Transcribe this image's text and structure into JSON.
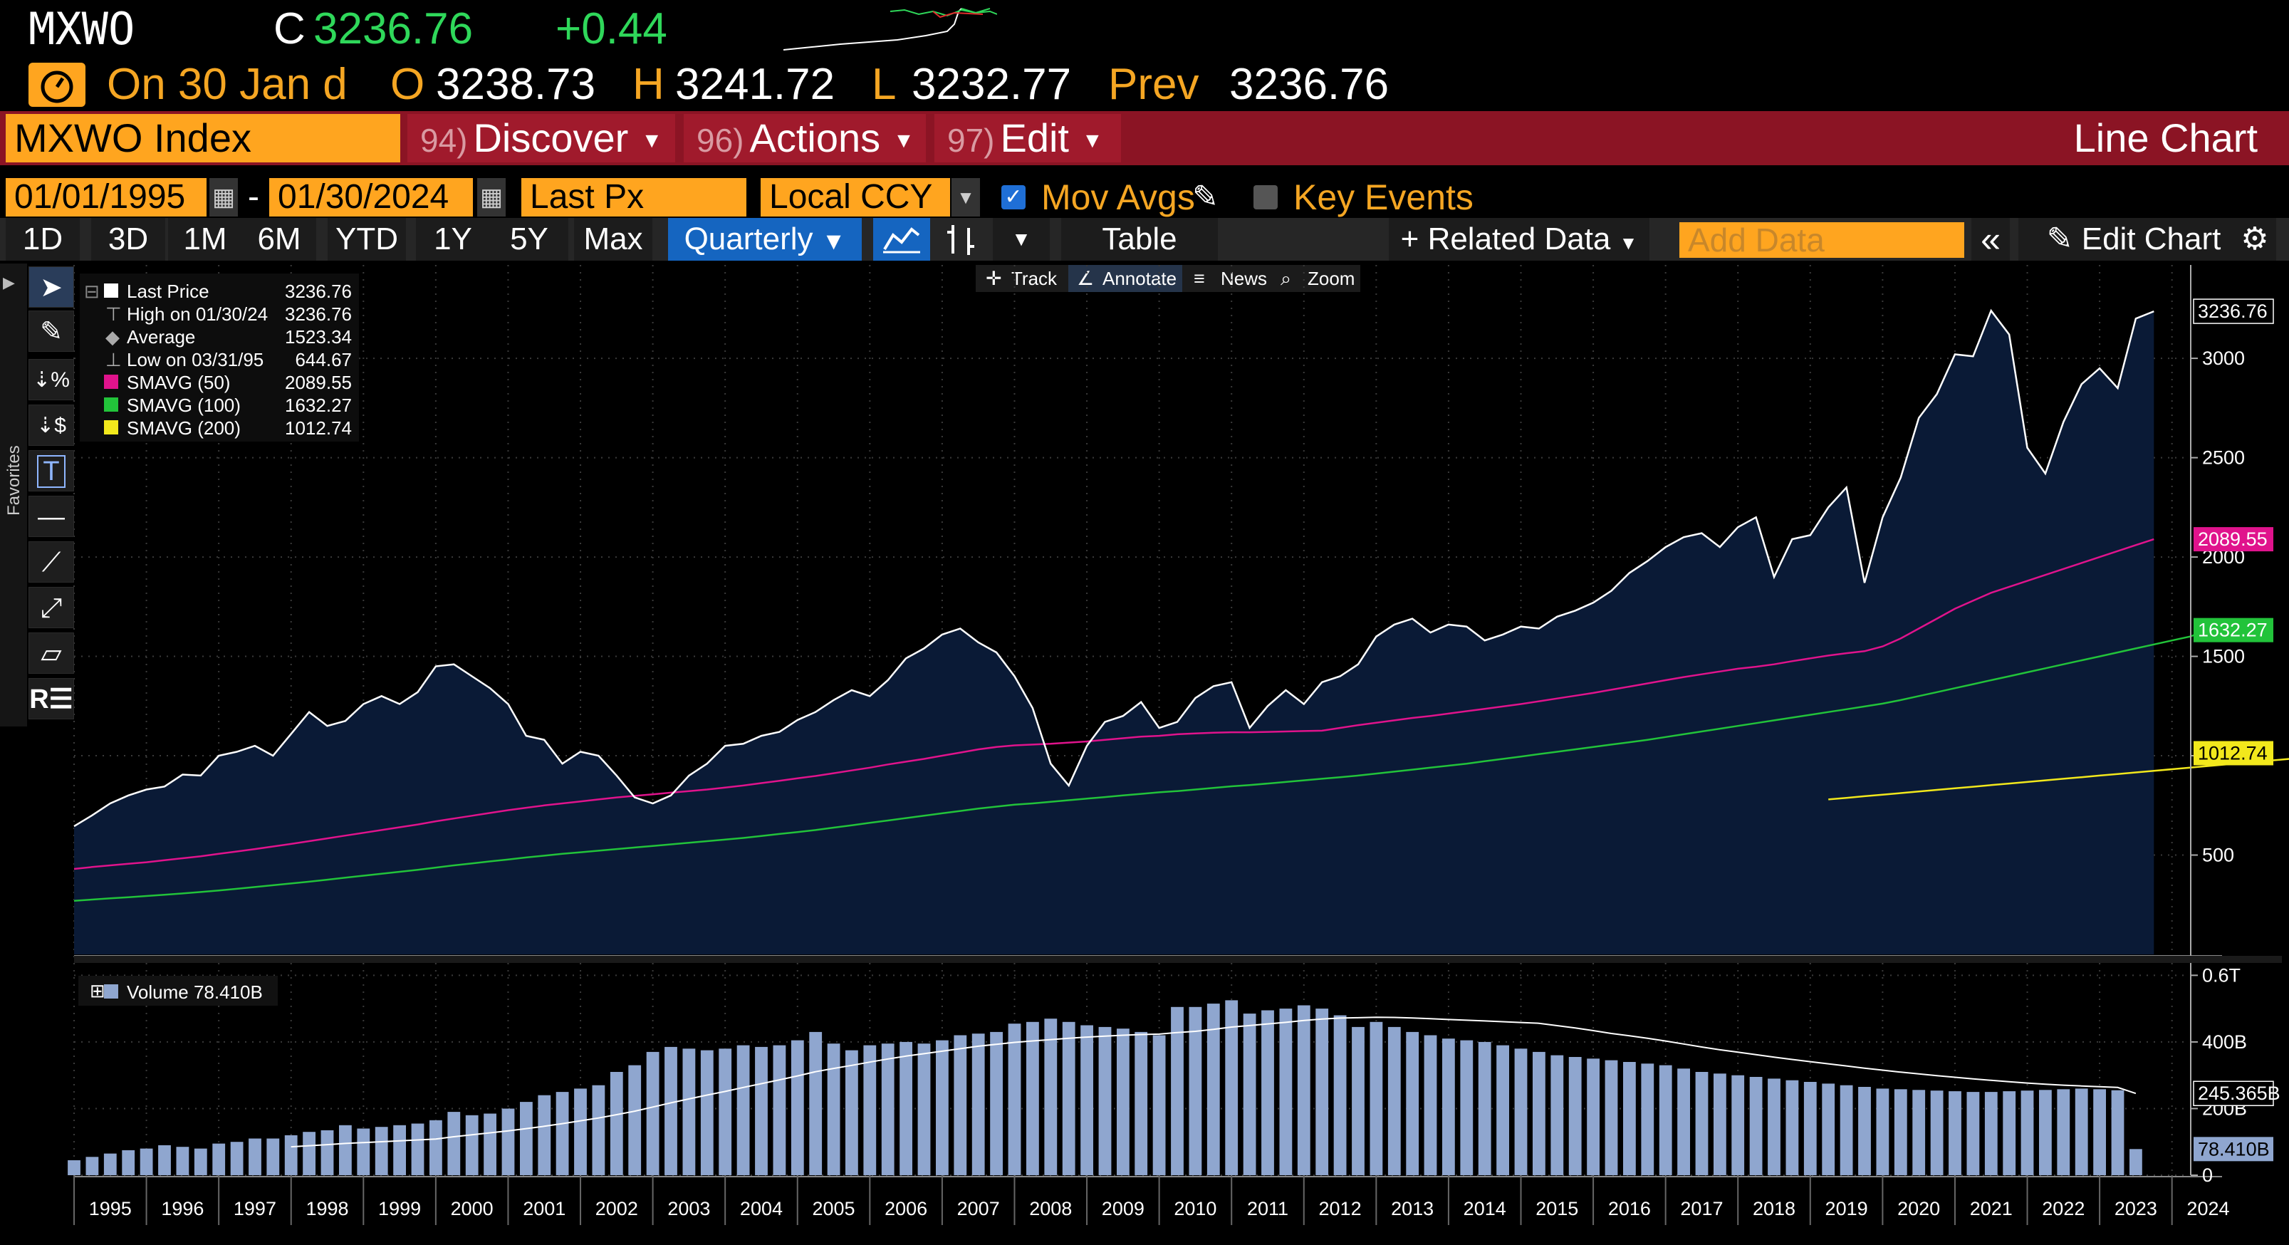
{
  "quote": {
    "ticker": "MXWO",
    "c_label": "C",
    "last": "3236.76",
    "change": "+0.44",
    "on_label": "On 30 Jan d",
    "o_label": "O",
    "open": "3238.73",
    "h_label": "H",
    "high": "3241.72",
    "l_label": "L",
    "low": "3232.77",
    "prev_label": "Prev",
    "prev": "3236.76"
  },
  "function_bar": {
    "security": "MXWO Index",
    "discover_num": "94)",
    "discover": "Discover",
    "actions_num": "96)",
    "actions": "Actions",
    "edit_num": "97)",
    "edit": "Edit",
    "chart_type": "Line Chart"
  },
  "settings": {
    "start_date": "01/01/1995",
    "dash": "-",
    "end_date": "01/30/2024",
    "field": "Last Px",
    "currency": "Local CCY",
    "mov_avgs": "Mov Avgs",
    "key_events": "Key Events"
  },
  "periods": [
    "1D",
    "3D",
    "1M",
    "6M",
    "YTD",
    "1Y",
    "5Y",
    "Max"
  ],
  "frequency": "Quarterly",
  "toolbar": {
    "table": "Table",
    "related_data": "Related Data",
    "add_data_placeholder": "Add Data",
    "edit_chart": "Edit Chart"
  },
  "chart_tools": {
    "track": "Track",
    "annotate": "Annotate",
    "news": "News",
    "zoom": "Zoom"
  },
  "side_tab": "Favorites",
  "legend": [
    {
      "label": "Last Price",
      "value": "3236.76",
      "color": "#ffffff"
    },
    {
      "label": "High on 01/30/24",
      "value": "3236.76",
      "color": ""
    },
    {
      "label": "Average",
      "value": "1523.34",
      "color": ""
    },
    {
      "label": "Low on 03/31/95",
      "value": "644.67",
      "color": ""
    },
    {
      "label": "SMAVG (50)",
      "value": "2089.55",
      "color": "#e0138c"
    },
    {
      "label": "SMAVG (100)",
      "value": "1632.27",
      "color": "#22c33a"
    },
    {
      "label": "SMAVG (200)",
      "value": "1012.74",
      "color": "#f2e81c"
    }
  ],
  "volume_legend": "Volume 78.410B",
  "chart_data": {
    "type": "line",
    "price_axis": {
      "ticks": [
        500,
        1000,
        1500,
        2000,
        2500,
        3000
      ],
      "tick_labels": [
        "500",
        "",
        "1500",
        "2000",
        "2500",
        "3000"
      ],
      "range": [
        0,
        3470
      ]
    },
    "volume_axis": {
      "tick_labels": [
        "0",
        "200B",
        "400B",
        "0.6T"
      ],
      "ticks": [
        0,
        200,
        400,
        600
      ],
      "range": [
        0,
        620
      ]
    },
    "years": [
      "1995",
      "1996",
      "1997",
      "1998",
      "1999",
      "2000",
      "2001",
      "2002",
      "2003",
      "2004",
      "2005",
      "2006",
      "2007",
      "2008",
      "2009",
      "2010",
      "2011",
      "2012",
      "2013",
      "2014",
      "2015",
      "2016",
      "2017",
      "2018",
      "2019",
      "2020",
      "2021",
      "2022",
      "2023",
      "2024"
    ],
    "price_labels": [
      {
        "text": "3236.76",
        "value": 3236.76,
        "color": "#ffffff"
      },
      {
        "text": "2089.55",
        "value": 2089.55,
        "color": "#e0138c"
      },
      {
        "text": "1632.27",
        "value": 1632.27,
        "color": "#22c33a"
      },
      {
        "text": "1012.74",
        "value": 1012.74,
        "color": "#f2e81c"
      }
    ],
    "volume_labels": [
      {
        "text": "245.365B",
        "value": 245.365,
        "color": "#ffffff"
      },
      {
        "text": "78.410B",
        "value": 78.41,
        "color": "#8fa6cf"
      }
    ],
    "series": [
      {
        "name": "Last Price",
        "color": "#ffffff",
        "x_start": 1995.0,
        "x_step": 0.25,
        "values": [
          645,
          700,
          760,
          800,
          830,
          845,
          905,
          900,
          1000,
          1020,
          1050,
          1000,
          1110,
          1220,
          1150,
          1175,
          1260,
          1300,
          1260,
          1320,
          1450,
          1460,
          1400,
          1340,
          1260,
          1100,
          1080,
          960,
          1020,
          1000,
          900,
          790,
          760,
          800,
          900,
          960,
          1050,
          1060,
          1100,
          1120,
          1180,
          1220,
          1280,
          1330,
          1300,
          1380,
          1490,
          1540,
          1610,
          1640,
          1570,
          1520,
          1400,
          1240,
          960,
          850,
          1050,
          1170,
          1200,
          1270,
          1140,
          1170,
          1290,
          1350,
          1370,
          1140,
          1250,
          1330,
          1260,
          1370,
          1400,
          1460,
          1600,
          1660,
          1690,
          1620,
          1660,
          1650,
          1580,
          1610,
          1650,
          1640,
          1700,
          1730,
          1770,
          1830,
          1920,
          1980,
          2050,
          2100,
          2120,
          2050,
          2150,
          2200,
          1900,
          2090,
          2110,
          2250,
          2350,
          1870,
          2200,
          2400,
          2700,
          2820,
          3020,
          3010,
          3240,
          3120,
          2550,
          2420,
          2680,
          2870,
          2950,
          2850,
          3200,
          3236.76
        ]
      },
      {
        "name": "SMAVG (50)",
        "color": "#e0138c",
        "x_start": 1995.0,
        "x_step": 0.25,
        "values": [
          430,
          440,
          448,
          456,
          464,
          474,
          484,
          494,
          506,
          518,
          530,
          543,
          556,
          570,
          584,
          598,
          612,
          626,
          640,
          654,
          670,
          684,
          698,
          712,
          726,
          738,
          750,
          760,
          770,
          780,
          790,
          798,
          806,
          814,
          822,
          830,
          840,
          850,
          862,
          874,
          886,
          898,
          912,
          926,
          940,
          956,
          970,
          984,
          1000,
          1016,
          1032,
          1044,
          1052,
          1056,
          1060,
          1066,
          1072,
          1080,
          1088,
          1096,
          1100,
          1108,
          1112,
          1116,
          1118,
          1118,
          1120,
          1122,
          1124,
          1126,
          1140,
          1154,
          1166,
          1178,
          1190,
          1200,
          1212,
          1224,
          1236,
          1248,
          1260,
          1274,
          1288,
          1302,
          1316,
          1332,
          1348,
          1364,
          1380,
          1396,
          1410,
          1424,
          1438,
          1448,
          1460,
          1476,
          1490,
          1504,
          1516,
          1526,
          1550,
          1590,
          1640,
          1690,
          1740,
          1780,
          1820,
          1850,
          1880,
          1910,
          1940,
          1970,
          2000,
          2030,
          2060,
          2089.55
        ]
      },
      {
        "name": "SMAVG (100)",
        "color": "#22c33a",
        "x_start": 1995.0,
        "x_step": 0.25,
        "values": [
          270,
          276,
          282,
          288,
          294,
          300,
          307,
          314,
          322,
          330,
          339,
          348,
          357,
          366,
          376,
          386,
          396,
          406,
          416,
          426,
          437,
          448,
          458,
          468,
          478,
          488,
          497,
          506,
          514,
          522,
          530,
          538,
          546,
          554,
          562,
          570,
          578,
          586,
          596,
          606,
          616,
          626,
          638,
          650,
          662,
          674,
          686,
          698,
          710,
          722,
          734,
          744,
          754,
          760,
          768,
          776,
          784,
          792,
          800,
          808,
          816,
          822,
          830,
          838,
          846,
          852,
          860,
          868,
          876,
          884,
          892,
          900,
          910,
          920,
          930,
          940,
          950,
          960,
          972,
          984,
          996,
          1008,
          1020,
          1032,
          1044,
          1056,
          1068,
          1080,
          1094,
          1108,
          1122,
          1136,
          1150,
          1164,
          1178,
          1192,
          1206,
          1220,
          1234,
          1248,
          1262,
          1280,
          1300,
          1320,
          1340,
          1360,
          1380,
          1400,
          1420,
          1440,
          1460,
          1480,
          1500,
          1520,
          1540,
          1560,
          1580,
          1600,
          1632.27
        ]
      },
      {
        "name": "SMAVG (200)",
        "color": "#f2e81c",
        "x_start": 2019.25,
        "x_step": 0.25,
        "values": [
          780,
          788,
          796,
          804,
          812,
          820,
          828,
          836,
          844,
          852,
          860,
          868,
          876,
          884,
          892,
          900,
          908,
          916,
          924,
          932,
          940,
          948,
          956,
          964,
          972,
          980,
          988,
          996,
          1004,
          1012.74
        ]
      }
    ],
    "volume": {
      "name": "Volume",
      "color": "#8fa6cf",
      "x_start": 1995.0,
      "x_step": 0.25,
      "unit": "B",
      "values": [
        45,
        55,
        65,
        75,
        80,
        90,
        85,
        80,
        95,
        100,
        110,
        110,
        120,
        130,
        135,
        150,
        140,
        145,
        150,
        155,
        165,
        190,
        180,
        185,
        200,
        220,
        240,
        250,
        260,
        270,
        310,
        330,
        370,
        385,
        380,
        375,
        380,
        390,
        385,
        390,
        405,
        430,
        395,
        375,
        390,
        395,
        400,
        395,
        405,
        420,
        425,
        430,
        455,
        460,
        470,
        460,
        450,
        445,
        440,
        430,
        420,
        505,
        505,
        515,
        525,
        485,
        495,
        500,
        510,
        500,
        480,
        445,
        460,
        445,
        430,
        420,
        410,
        405,
        400,
        390,
        380,
        370,
        360,
        355,
        350,
        345,
        340,
        335,
        330,
        320,
        310,
        305,
        300,
        295,
        290,
        285,
        280,
        275,
        270,
        265,
        260,
        258,
        256,
        254,
        252,
        250,
        250,
        252,
        254,
        256,
        258,
        260,
        258,
        255,
        78.41
      ],
      "average": [
        null,
        null,
        null,
        null,
        null,
        null,
        null,
        null,
        null,
        null,
        null,
        null,
        null,
        null,
        null,
        null,
        null,
        null,
        null,
        null,
        null,
        null,
        null,
        null,
        null,
        null,
        null,
        null,
        null,
        null,
        null,
        null,
        null,
        null,
        null,
        null,
        null,
        null,
        null,
        null,
        null,
        null,
        null,
        null,
        null,
        null,
        null,
        null,
        null,
        null,
        null,
        null,
        null,
        null,
        null,
        null,
        null,
        null,
        null,
        null,
        null,
        null,
        null,
        null,
        null,
        null,
        null,
        null,
        null,
        null,
        null,
        null,
        null,
        null,
        null,
        null,
        null,
        null,
        null,
        null,
        null,
        null,
        null,
        null,
        null,
        null,
        null,
        null,
        null,
        null,
        null,
        null,
        null,
        null,
        null,
        null,
        null,
        null,
        null,
        null,
        null,
        null,
        null,
        null,
        null,
        null,
        null,
        null,
        null,
        null,
        null,
        null,
        null,
        null,
        245.365
      ]
    }
  },
  "colors": {
    "accent": "#ffa51f",
    "function_bar": "#8b1424",
    "area_fill": "#0a1a36",
    "volume_bar": "#8fa6cf"
  }
}
